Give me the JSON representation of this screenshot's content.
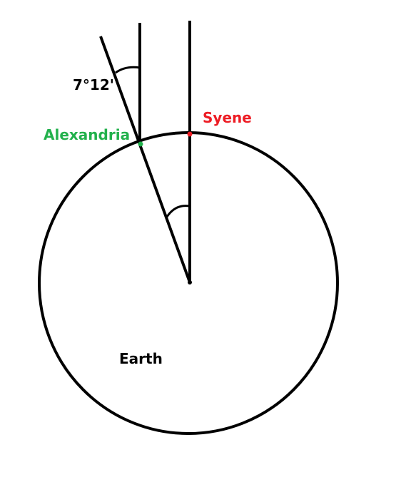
{
  "labels": {
    "angle": "7°12'",
    "alexandria": "Alexandria",
    "syene": "Syene",
    "earth": "Earth"
  },
  "colors": {
    "line": "#000000",
    "alexandria": "#22b14c",
    "syene": "#ed1c24",
    "background": "#ffffff"
  }
}
